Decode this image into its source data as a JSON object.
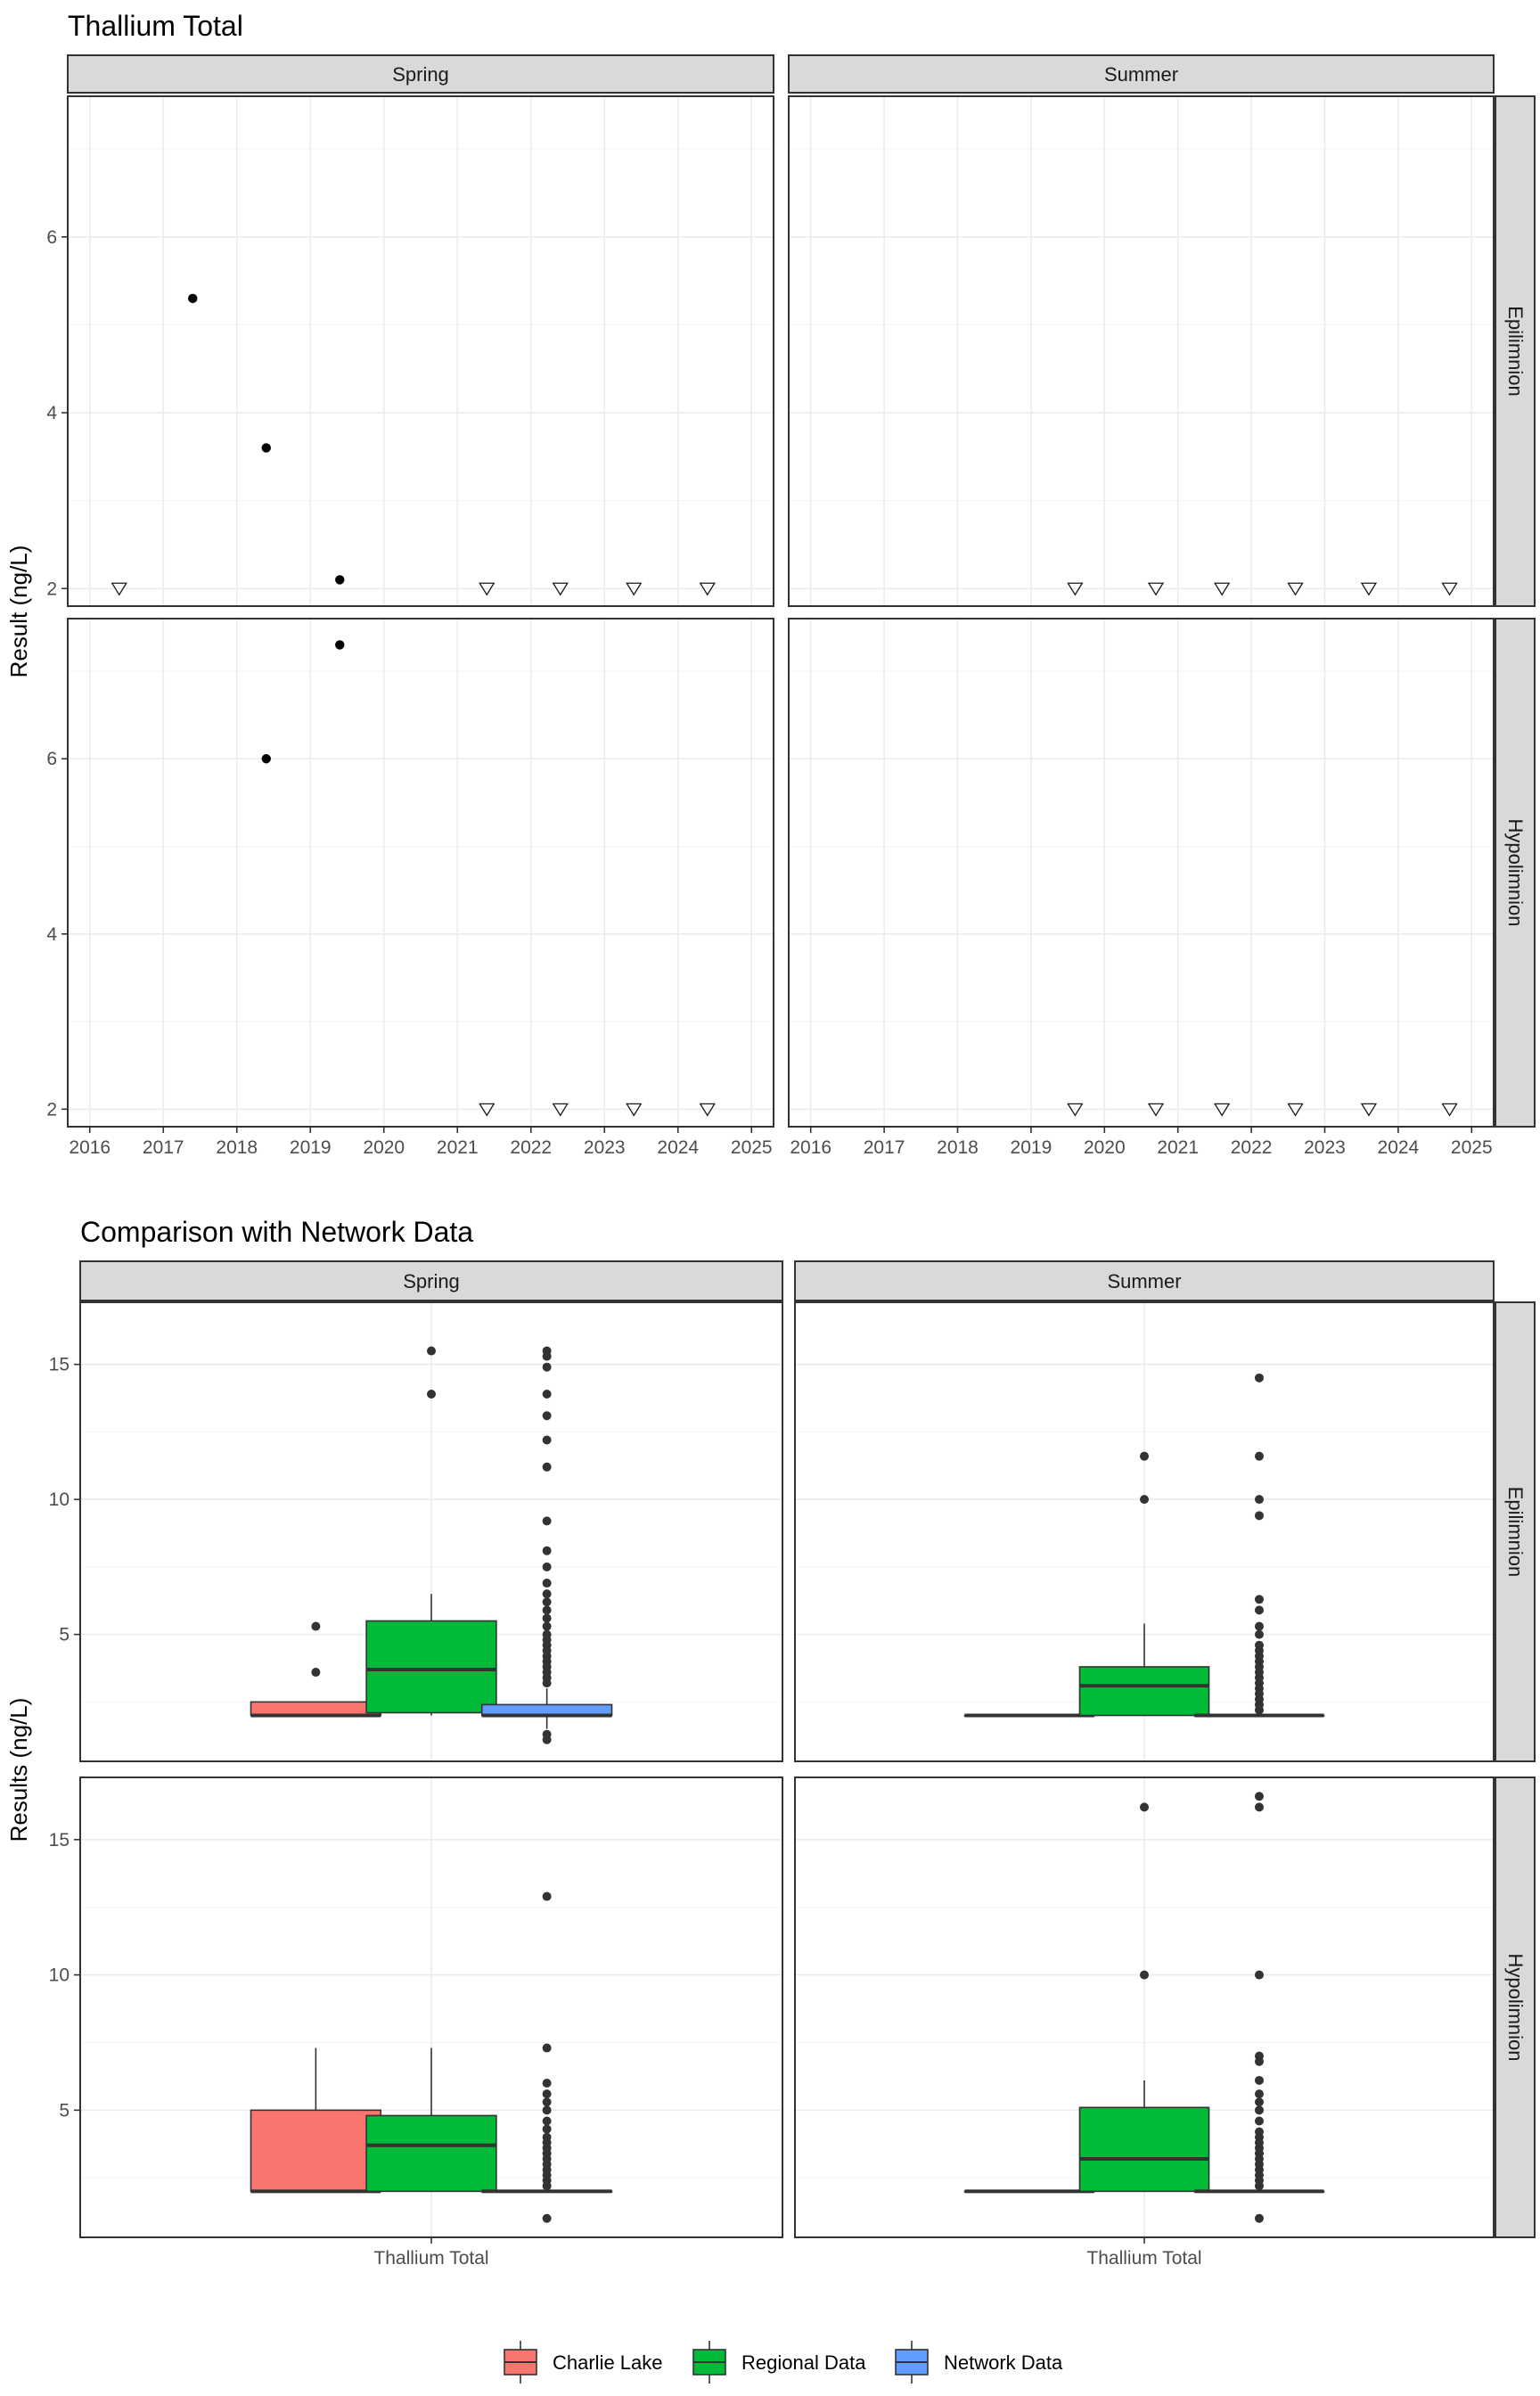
{
  "colors": {
    "charlie_lake": "#F8766D",
    "regional": "#00BA38",
    "network": "#619CFF",
    "strip": "#D9D9D9",
    "point": "#000000",
    "outlier": "#333333"
  },
  "legend": {
    "items": [
      {
        "label": "Charlie Lake",
        "color": "#F8766D"
      },
      {
        "label": "Regional Data",
        "color": "#00BA38"
      },
      {
        "label": "Network Data",
        "color": "#619CFF"
      }
    ]
  },
  "chart_data": [
    {
      "type": "scatter",
      "title": "Thallium Total",
      "xlabel": "",
      "ylabel": "Result (ng/L)",
      "xlim": [
        2015.7,
        2025.3
      ],
      "ylim": [
        1.8,
        7.6
      ],
      "x_ticks": [
        2016,
        2017,
        2018,
        2019,
        2020,
        2021,
        2022,
        2023,
        2024,
        2025
      ],
      "y_ticks": [
        2,
        4,
        6
      ],
      "columns": [
        "Spring",
        "Summer"
      ],
      "rows": [
        "Epilimnion",
        "Hypolimnion"
      ],
      "marker_legend": {
        "detected": "filled circle",
        "below_detection_limit": "open downward triangle"
      },
      "panels": [
        {
          "column": "Spring",
          "row": "Epilimnion",
          "detected": [
            {
              "x": 2017.4,
              "y": 5.3
            },
            {
              "x": 2018.4,
              "y": 3.6
            },
            {
              "x": 2019.4,
              "y": 2.1
            }
          ],
          "below_detection_limit": [
            {
              "x": 2016.4,
              "y": 2
            },
            {
              "x": 2021.4,
              "y": 2
            },
            {
              "x": 2022.4,
              "y": 2
            },
            {
              "x": 2023.4,
              "y": 2
            },
            {
              "x": 2024.4,
              "y": 2
            }
          ]
        },
        {
          "column": "Summer",
          "row": "Epilimnion",
          "detected": [],
          "below_detection_limit": [
            {
              "x": 2019.6,
              "y": 2
            },
            {
              "x": 2020.7,
              "y": 2
            },
            {
              "x": 2021.6,
              "y": 2
            },
            {
              "x": 2022.6,
              "y": 2
            },
            {
              "x": 2023.6,
              "y": 2
            },
            {
              "x": 2024.7,
              "y": 2
            }
          ]
        },
        {
          "column": "Spring",
          "row": "Hypolimnion",
          "detected": [
            {
              "x": 2018.4,
              "y": 6.0
            },
            {
              "x": 2019.4,
              "y": 7.3
            }
          ],
          "below_detection_limit": [
            {
              "x": 2021.4,
              "y": 2
            },
            {
              "x": 2022.4,
              "y": 2
            },
            {
              "x": 2023.4,
              "y": 2
            },
            {
              "x": 2024.4,
              "y": 2
            }
          ]
        },
        {
          "column": "Summer",
          "row": "Hypolimnion",
          "detected": [],
          "below_detection_limit": [
            {
              "x": 2019.6,
              "y": 2
            },
            {
              "x": 2020.7,
              "y": 2
            },
            {
              "x": 2021.6,
              "y": 2
            },
            {
              "x": 2022.6,
              "y": 2
            },
            {
              "x": 2023.6,
              "y": 2
            },
            {
              "x": 2024.7,
              "y": 2
            }
          ]
        }
      ]
    },
    {
      "type": "box",
      "title": "Comparison with Network Data",
      "xlabel": "",
      "ylabel": "Results (ng/L)",
      "ylim": [
        0.3,
        17.3
      ],
      "y_ticks": [
        5,
        10,
        15
      ],
      "category": "Thallium Total",
      "columns": [
        "Spring",
        "Summer"
      ],
      "rows": [
        "Epilimnion",
        "Hypolimnion"
      ],
      "panels": [
        {
          "column": "Spring",
          "row": "Epilimnion",
          "boxes": [
            {
              "series": "Charlie Lake",
              "min": 2.0,
              "q1": 2.0,
              "median": 2.0,
              "q3": 2.5,
              "max": 2.5,
              "outliers": [
                3.6,
                5.3
              ]
            },
            {
              "series": "Regional Data",
              "min": 2.0,
              "q1": 2.1,
              "median": 3.7,
              "q3": 5.5,
              "max": 6.5,
              "outliers": [
                13.9,
                15.5
              ]
            },
            {
              "series": "Network Data",
              "min": 1.5,
              "q1": 2.0,
              "median": 2.0,
              "q3": 2.4,
              "max": 3.0,
              "outliers": [
                1.1,
                1.3,
                3.2,
                3.4,
                3.6,
                3.8,
                4.0,
                4.2,
                4.4,
                4.6,
                4.8,
                5.0,
                5.3,
                5.6,
                5.9,
                6.2,
                6.5,
                6.9,
                7.5,
                8.1,
                9.2,
                11.2,
                12.2,
                13.1,
                13.9,
                14.9,
                15.3,
                15.5
              ]
            }
          ]
        },
        {
          "column": "Summer",
          "row": "Epilimnion",
          "boxes": [
            {
              "series": "Charlie Lake",
              "min": 2.0,
              "q1": 2.0,
              "median": 2.0,
              "q3": 2.0,
              "max": 2.0,
              "outliers": []
            },
            {
              "series": "Regional Data",
              "min": 2.0,
              "q1": 2.0,
              "median": 3.1,
              "q3": 3.8,
              "max": 5.4,
              "outliers": [
                10.0,
                11.6
              ]
            },
            {
              "series": "Network Data",
              "min": 2.0,
              "q1": 2.0,
              "median": 2.0,
              "q3": 2.0,
              "max": 2.0,
              "outliers": [
                2.2,
                2.4,
                2.6,
                2.8,
                3.0,
                3.2,
                3.4,
                3.6,
                3.8,
                4.0,
                4.2,
                4.4,
                4.6,
                5.0,
                5.3,
                5.9,
                6.3,
                9.4,
                10.0,
                11.6,
                14.5
              ]
            }
          ]
        },
        {
          "column": "Spring",
          "row": "Hypolimnion",
          "boxes": [
            {
              "series": "Charlie Lake",
              "min": 2.0,
              "q1": 2.0,
              "median": 2.0,
              "q3": 5.0,
              "max": 7.3,
              "outliers": []
            },
            {
              "series": "Regional Data",
              "min": 2.0,
              "q1": 2.0,
              "median": 3.7,
              "q3": 4.8,
              "max": 7.3,
              "outliers": []
            },
            {
              "series": "Network Data",
              "min": 2.0,
              "q1": 2.0,
              "median": 2.0,
              "q3": 2.0,
              "max": 2.0,
              "outliers": [
                1.0,
                2.2,
                2.4,
                2.6,
                2.8,
                3.0,
                3.2,
                3.4,
                3.6,
                3.8,
                4.0,
                4.3,
                4.6,
                5.0,
                5.3,
                5.6,
                6.0,
                7.3,
                12.9
              ]
            }
          ]
        },
        {
          "column": "Summer",
          "row": "Hypolimnion",
          "boxes": [
            {
              "series": "Charlie Lake",
              "min": 2.0,
              "q1": 2.0,
              "median": 2.0,
              "q3": 2.0,
              "max": 2.0,
              "outliers": []
            },
            {
              "series": "Regional Data",
              "min": 2.0,
              "q1": 2.0,
              "median": 3.2,
              "q3": 5.1,
              "max": 6.1,
              "outliers": [
                10.0,
                16.2
              ]
            },
            {
              "series": "Network Data",
              "min": 2.0,
              "q1": 2.0,
              "median": 2.0,
              "q3": 2.0,
              "max": 2.0,
              "outliers": [
                1.0,
                2.2,
                2.4,
                2.6,
                2.8,
                3.0,
                3.2,
                3.4,
                3.6,
                3.8,
                4.0,
                4.2,
                4.6,
                5.0,
                5.3,
                5.6,
                6.1,
                6.8,
                7.0,
                10.0,
                16.2,
                16.6
              ]
            }
          ]
        }
      ]
    }
  ]
}
